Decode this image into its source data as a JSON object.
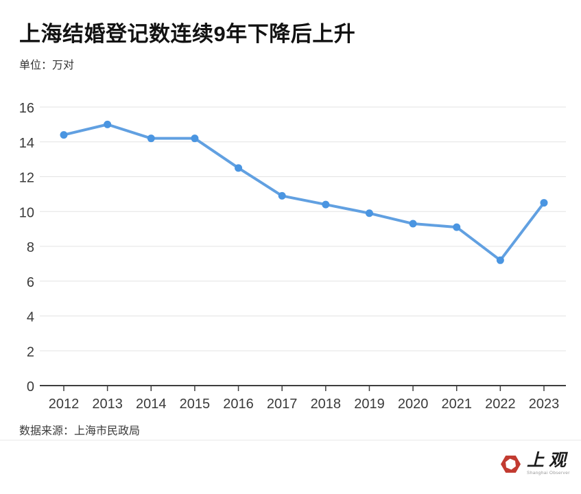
{
  "header": {
    "title": "上海结婚登记数连续9年下降后上升",
    "unit_label": "单位：万对"
  },
  "footer": {
    "source": "数据来源：上海市民政局",
    "logo_cn": "上观",
    "logo_en": "Shanghai Observer"
  },
  "colors": {
    "line": "#61a0e1",
    "point": "#4a95e1",
    "grid": "#e3e3e3",
    "axis": "#3d3d3d",
    "tick_label": "#3a3a3a",
    "logo_red": "#c23b31"
  },
  "chart_data": {
    "type": "line",
    "title": "上海结婚登记数连续9年下降后上升",
    "unit": "万对",
    "categories": [
      "2012",
      "2013",
      "2014",
      "2015",
      "2016",
      "2017",
      "2018",
      "2019",
      "2020",
      "2021",
      "2022",
      "2023"
    ],
    "values": [
      14.4,
      15.0,
      14.2,
      14.2,
      12.5,
      10.9,
      10.4,
      9.9,
      9.3,
      9.1,
      7.2,
      10.5
    ],
    "ylim": [
      0,
      16
    ],
    "ytick_step": 2,
    "grid": true,
    "legend": "none",
    "source": "上海市民政局"
  }
}
